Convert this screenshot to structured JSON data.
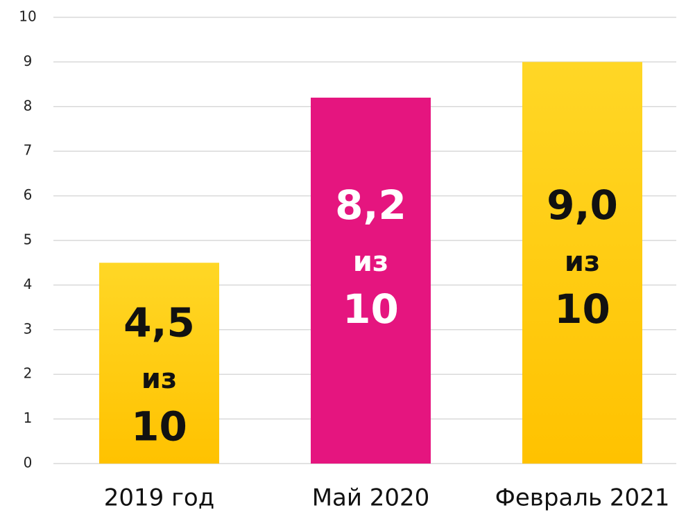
{
  "chart_data": {
    "type": "bar",
    "categories": [
      "2019 год",
      "Май 2020",
      "Февраль 2021"
    ],
    "values": [
      4.5,
      8.2,
      9.0
    ],
    "value_labels": [
      [
        "4,5",
        "из",
        "10"
      ],
      [
        "8,2",
        "из",
        "10"
      ],
      [
        "9,0",
        "из",
        "10"
      ]
    ],
    "colors": [
      "#ffc800",
      "#e5157f",
      "#ffc800"
    ],
    "label_colors": [
      "#111111",
      "#ffffff",
      "#111111"
    ],
    "ylim": [
      0,
      10
    ],
    "yticks": [
      0,
      1,
      2,
      3,
      4,
      5,
      6,
      7,
      8,
      9,
      10
    ],
    "grid": true
  }
}
